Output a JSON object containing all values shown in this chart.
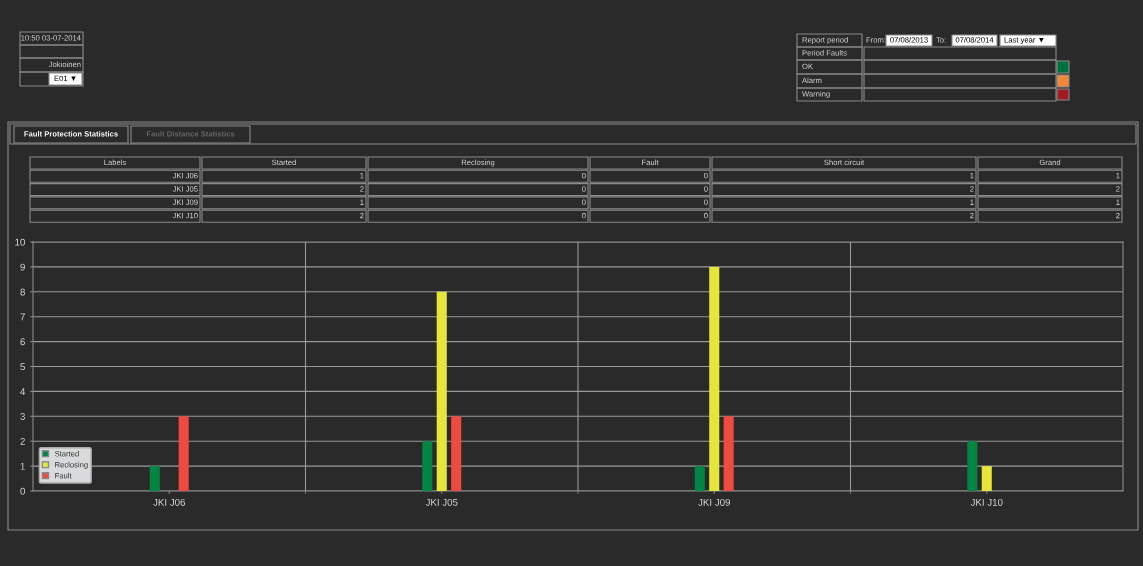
{
  "chart_data": {
    "type": "bar",
    "categories": [
      "JKI J06",
      "JKI J05",
      "JKI J09",
      "JKI J10"
    ],
    "series": [
      {
        "name": "Started",
        "color": "#008542",
        "values": [
          1,
          2,
          1,
          2
        ]
      },
      {
        "name": "Reclosing",
        "color": "#e5e53a",
        "values": [
          0,
          8,
          9,
          1
        ]
      },
      {
        "name": "Fault",
        "color": "#ef4a40",
        "values": [
          3,
          3,
          3,
          0
        ]
      }
    ],
    "ylim": [
      0,
      10
    ],
    "yticks": [
      0,
      1,
      2,
      3,
      4,
      5,
      6,
      7,
      8,
      9,
      10
    ],
    "grid": true,
    "legend": "bottom left",
    "annotations": [
      "10:50 03-07-2014",
      "Jokioinen",
      "E01 ▼",
      "Fault Protection Statistics",
      "Fault Distance Statistics",
      "Report period",
      "From:",
      "07/08/2013",
      "To:",
      "07/08/2014",
      "Last year ▼",
      "Period Faults",
      "OK",
      "Alarm",
      "Warning",
      "Labels",
      "Started",
      "Reclosing",
      "Fault",
      "Short circuit",
      "Grand",
      "JKI J06",
      "1",
      "0",
      "0",
      "1",
      "1",
      "JKI J05",
      "2",
      "0",
      "0",
      "2",
      "2",
      "JKI J09",
      "1",
      "0",
      "0",
      "1",
      "1",
      "JKI J10",
      "2",
      "0",
      "0",
      "2",
      "2"
    ]
  }
}
